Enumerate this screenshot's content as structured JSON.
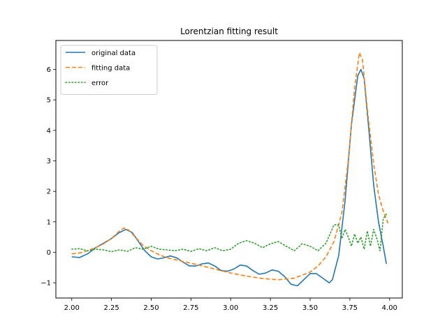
{
  "chart_data": {
    "type": "line",
    "title": "Lorentzian fitting result",
    "xlabel": "",
    "ylabel": "",
    "xlim": [
      1.9,
      4.08
    ],
    "ylim": [
      -1.5,
      6.95
    ],
    "xticks": [
      "2.00",
      "2.25",
      "2.50",
      "2.75",
      "3.00",
      "3.25",
      "3.50",
      "3.75",
      "4.00"
    ],
    "yticks": [
      "−1",
      "0",
      "1",
      "2",
      "3",
      "4",
      "5",
      "6"
    ],
    "grid": false,
    "legend_position": "top-left",
    "series": [
      {
        "name": "original data",
        "color": "#1f77b4",
        "style": "solid",
        "points": [
          [
            2.0,
            -0.15
          ],
          [
            2.05,
            -0.17
          ],
          [
            2.1,
            -0.05
          ],
          [
            2.15,
            0.15
          ],
          [
            2.2,
            0.3
          ],
          [
            2.25,
            0.45
          ],
          [
            2.3,
            0.65
          ],
          [
            2.34,
            0.75
          ],
          [
            2.38,
            0.65
          ],
          [
            2.42,
            0.35
          ],
          [
            2.46,
            0.05
          ],
          [
            2.5,
            -0.15
          ],
          [
            2.54,
            -0.22
          ],
          [
            2.58,
            -0.18
          ],
          [
            2.62,
            -0.12
          ],
          [
            2.66,
            -0.18
          ],
          [
            2.7,
            -0.32
          ],
          [
            2.74,
            -0.45
          ],
          [
            2.78,
            -0.45
          ],
          [
            2.82,
            -0.38
          ],
          [
            2.86,
            -0.35
          ],
          [
            2.9,
            -0.45
          ],
          [
            2.94,
            -0.6
          ],
          [
            2.98,
            -0.62
          ],
          [
            3.02,
            -0.55
          ],
          [
            3.06,
            -0.42
          ],
          [
            3.1,
            -0.45
          ],
          [
            3.14,
            -0.6
          ],
          [
            3.18,
            -0.72
          ],
          [
            3.22,
            -0.68
          ],
          [
            3.26,
            -0.58
          ],
          [
            3.3,
            -0.62
          ],
          [
            3.34,
            -0.8
          ],
          [
            3.38,
            -1.05
          ],
          [
            3.42,
            -1.1
          ],
          [
            3.46,
            -0.9
          ],
          [
            3.5,
            -0.7
          ],
          [
            3.54,
            -0.7
          ],
          [
            3.58,
            -0.85
          ],
          [
            3.62,
            -1.0
          ],
          [
            3.64,
            -0.9
          ],
          [
            3.68,
            -0.1
          ],
          [
            3.72,
            1.7
          ],
          [
            3.76,
            4.2
          ],
          [
            3.8,
            5.8
          ],
          [
            3.82,
            6.0
          ],
          [
            3.84,
            5.7
          ],
          [
            3.87,
            4.0
          ],
          [
            3.9,
            2.2
          ],
          [
            3.93,
            1.0
          ],
          [
            3.96,
            0.2
          ],
          [
            3.98,
            -0.38
          ]
        ]
      },
      {
        "name": "fitting data",
        "color": "#ff7f0e",
        "style": "dashed",
        "points": [
          [
            2.0,
            -0.05
          ],
          [
            2.05,
            -0.02
          ],
          [
            2.1,
            0.05
          ],
          [
            2.15,
            0.15
          ],
          [
            2.2,
            0.28
          ],
          [
            2.25,
            0.45
          ],
          [
            2.3,
            0.7
          ],
          [
            2.33,
            0.8
          ],
          [
            2.36,
            0.72
          ],
          [
            2.4,
            0.5
          ],
          [
            2.45,
            0.22
          ],
          [
            2.5,
            0.05
          ],
          [
            2.55,
            -0.08
          ],
          [
            2.6,
            -0.18
          ],
          [
            2.7,
            -0.3
          ],
          [
            2.8,
            -0.42
          ],
          [
            2.9,
            -0.55
          ],
          [
            3.0,
            -0.68
          ],
          [
            3.1,
            -0.78
          ],
          [
            3.2,
            -0.86
          ],
          [
            3.3,
            -0.9
          ],
          [
            3.4,
            -0.85
          ],
          [
            3.5,
            -0.65
          ],
          [
            3.55,
            -0.45
          ],
          [
            3.6,
            -0.15
          ],
          [
            3.65,
            0.35
          ],
          [
            3.7,
            1.3
          ],
          [
            3.74,
            3.0
          ],
          [
            3.78,
            5.4
          ],
          [
            3.81,
            6.55
          ],
          [
            3.83,
            6.3
          ],
          [
            3.86,
            4.7
          ],
          [
            3.9,
            2.9
          ],
          [
            3.93,
            1.9
          ],
          [
            3.96,
            1.35
          ],
          [
            3.99,
            0.95
          ]
        ]
      },
      {
        "name": "error",
        "color": "#2ca02c",
        "style": "dotted",
        "points": [
          [
            2.0,
            0.1
          ],
          [
            2.05,
            0.12
          ],
          [
            2.1,
            0.05
          ],
          [
            2.15,
            0.1
          ],
          [
            2.2,
            0.08
          ],
          [
            2.25,
            0.02
          ],
          [
            2.3,
            0.08
          ],
          [
            2.35,
            0.03
          ],
          [
            2.4,
            0.15
          ],
          [
            2.45,
            0.1
          ],
          [
            2.5,
            0.2
          ],
          [
            2.55,
            0.1
          ],
          [
            2.6,
            0.08
          ],
          [
            2.65,
            0.05
          ],
          [
            2.7,
            0.1
          ],
          [
            2.75,
            0.03
          ],
          [
            2.8,
            0.12
          ],
          [
            2.85,
            0.05
          ],
          [
            2.9,
            0.15
          ],
          [
            2.95,
            0.05
          ],
          [
            3.0,
            0.1
          ],
          [
            3.05,
            0.3
          ],
          [
            3.1,
            0.38
          ],
          [
            3.15,
            0.3
          ],
          [
            3.2,
            0.15
          ],
          [
            3.25,
            0.28
          ],
          [
            3.3,
            0.35
          ],
          [
            3.35,
            0.2
          ],
          [
            3.4,
            0.05
          ],
          [
            3.45,
            0.28
          ],
          [
            3.5,
            0.2
          ],
          [
            3.55,
            0.05
          ],
          [
            3.6,
            0.3
          ],
          [
            3.65,
            0.9
          ],
          [
            3.68,
            0.9
          ],
          [
            3.7,
            0.45
          ],
          [
            3.72,
            0.75
          ],
          [
            3.74,
            0.5
          ],
          [
            3.76,
            0.2
          ],
          [
            3.78,
            0.6
          ],
          [
            3.8,
            0.3
          ],
          [
            3.82,
            0.5
          ],
          [
            3.84,
            0.1
          ],
          [
            3.86,
            0.7
          ],
          [
            3.88,
            0.2
          ],
          [
            3.9,
            0.75
          ],
          [
            3.92,
            0.45
          ],
          [
            3.94,
            0.05
          ],
          [
            3.96,
            1.1
          ],
          [
            3.98,
            1.25
          ]
        ]
      }
    ]
  }
}
